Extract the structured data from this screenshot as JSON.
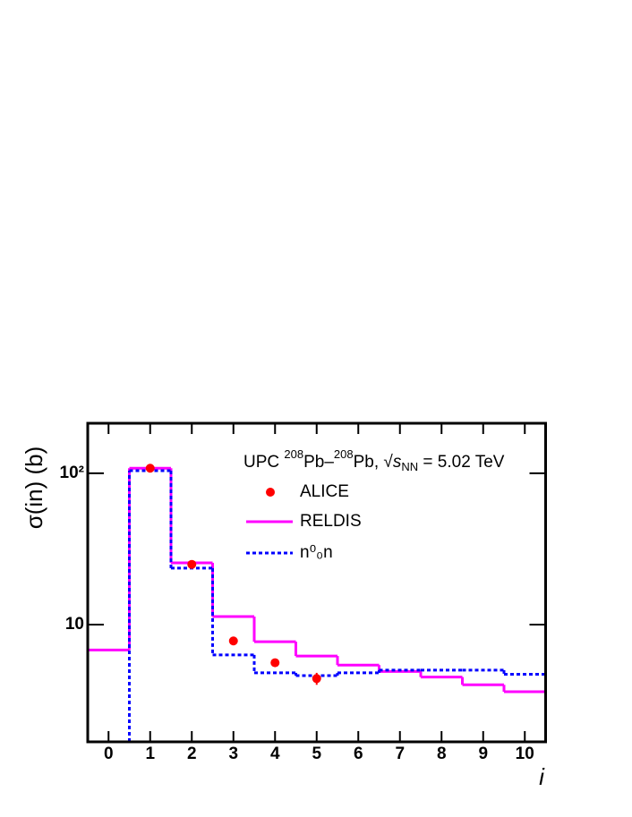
{
  "chart_data": {
    "type": "histogram",
    "y_label": "σ(in) (b)",
    "x_label": "i",
    "annotation": [
      "UPC ",
      "208",
      "Pb–",
      "208",
      "Pb, √",
      "s",
      "NN",
      " = 5.02 TeV"
    ],
    "x": [
      0,
      1,
      2,
      3,
      4,
      5,
      6,
      7,
      8,
      9,
      10
    ],
    "xlim": [
      -0.5,
      10.5
    ],
    "xticks": [
      0,
      1,
      2,
      3,
      4,
      5,
      6,
      7,
      8,
      9,
      10
    ],
    "ylim": [
      1.68,
      214
    ],
    "yticks": [
      10,
      {
        "value": 100,
        "label": "10²"
      }
    ],
    "log_y": true,
    "legend": "top-right",
    "points": {
      "name": "ALICE",
      "color": "#ff0000",
      "x": [
        1,
        2,
        3,
        4,
        5
      ],
      "values": [
        108,
        25,
        7.8,
        5.6,
        4.4
      ],
      "errors": [
        1,
        0.5,
        0.2,
        0.2,
        0.4
      ]
    },
    "series": [
      {
        "name": "RELDIS",
        "color": "#ff00ff",
        "dashed": false,
        "values": [
          6.8,
          108,
          25.6,
          11.3,
          7.7,
          6.2,
          5.4,
          4.9,
          4.5,
          4.0,
          3.6
        ]
      },
      {
        "name": "n⁰₀n",
        "color": "#0000ff",
        "dashed": true,
        "values": [
          null,
          104,
          23.6,
          6.3,
          4.8,
          4.6,
          4.8,
          5.0,
          5.0,
          5.0,
          4.7
        ]
      }
    ]
  }
}
